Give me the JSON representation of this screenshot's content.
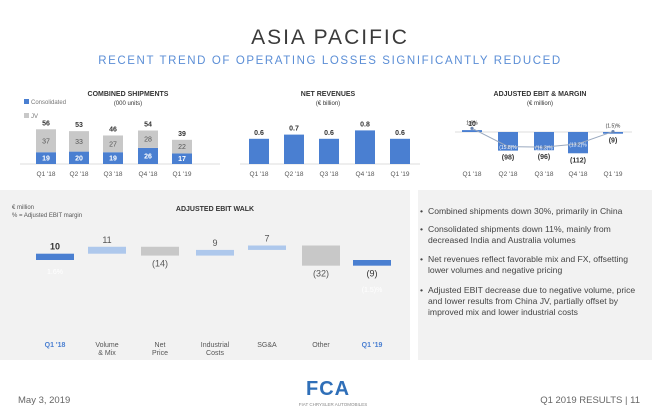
{
  "header": {
    "title": "ASIA PACIFIC",
    "subtitle": "RECENT TREND OF OPERATING LOSSES SIGNIFICANTLY REDUCED"
  },
  "colors": {
    "accent": "#4a7fd1",
    "light_blue": "#aec8ec",
    "gray": "#c8c8c8",
    "panel": "#f2f2f2"
  },
  "bullets": [
    "Combined shipments down 30%, primarily in China",
    "Consolidated shipments down 11%, mainly from decreased India and Australia volumes",
    "Net revenues reflect favorable mix and FX, offsetting lower volumes and negative pricing",
    "Adjusted EBIT decrease due to negative volume, price and lower results from China JV, partially offset by improved mix and lower industrial costs"
  ],
  "footer": {
    "date": "May 3, 2019",
    "page": "Q1 2019 RESULTS | 11",
    "logo": "FCA",
    "logo_sub": "FIAT CHRYSLER AUTOMOBILES"
  },
  "chart_data": [
    {
      "type": "bar",
      "title": "COMBINED SHIPMENTS",
      "subtitle": "(000 units)",
      "categories": [
        "Q1 '18",
        "Q2 '18",
        "Q3 '18",
        "Q4 '18",
        "Q1 '19"
      ],
      "series": [
        {
          "name": "Consolidated",
          "values": [
            19,
            20,
            19,
            26,
            17
          ]
        },
        {
          "name": "JV",
          "values": [
            37,
            33,
            27,
            28,
            22
          ]
        }
      ],
      "totals": [
        56,
        53,
        46,
        54,
        39
      ],
      "stacked": true,
      "legend": "top-left"
    },
    {
      "type": "bar",
      "title": "NET REVENUES",
      "subtitle": "(€ billion)",
      "categories": [
        "Q1 '18",
        "Q2 '18",
        "Q3 '18",
        "Q4 '18",
        "Q1 '19"
      ],
      "values": [
        0.6,
        0.7,
        0.6,
        0.8,
        0.6
      ],
      "labels": [
        "0.6",
        "0.7",
        "0.6",
        "0.8",
        "0.6"
      ]
    },
    {
      "type": "bar",
      "title": "ADJUSTED EBIT & MARGIN",
      "subtitle": "(€ million)",
      "categories": [
        "Q1 '18",
        "Q2 '18",
        "Q3 '18",
        "Q4 '18",
        "Q1 '19"
      ],
      "values": [
        10,
        -98,
        -96,
        -112,
        -9
      ],
      "labels": [
        "10",
        "(98)",
        "(96)",
        "(112)",
        "(9)"
      ],
      "margin_labels": [
        "1.6%",
        "(15.8)%",
        "(16.3)%",
        "(13.2)%",
        "(1.5)%"
      ],
      "margin_values": [
        1.6,
        -15.8,
        -16.3,
        -13.2,
        -1.5
      ]
    },
    {
      "type": "bar",
      "title": "ADJUSTED EBIT WALK",
      "notes": [
        "€ million",
        "% = Adjusted EBIT margin"
      ],
      "categories": [
        "Q1 '18",
        "Volume & Mix",
        "Net Price",
        "Industrial Costs",
        "SG&A",
        "Other",
        "Q1 '19"
      ],
      "values": [
        10,
        11,
        -14,
        9,
        7,
        -32,
        -9
      ],
      "labels": [
        "10",
        "11",
        "(14)",
        "9",
        "7",
        "(32)",
        "(9)"
      ],
      "margin_labels": [
        "1.6%",
        "(1.5)%"
      ],
      "waterfall": true
    }
  ]
}
